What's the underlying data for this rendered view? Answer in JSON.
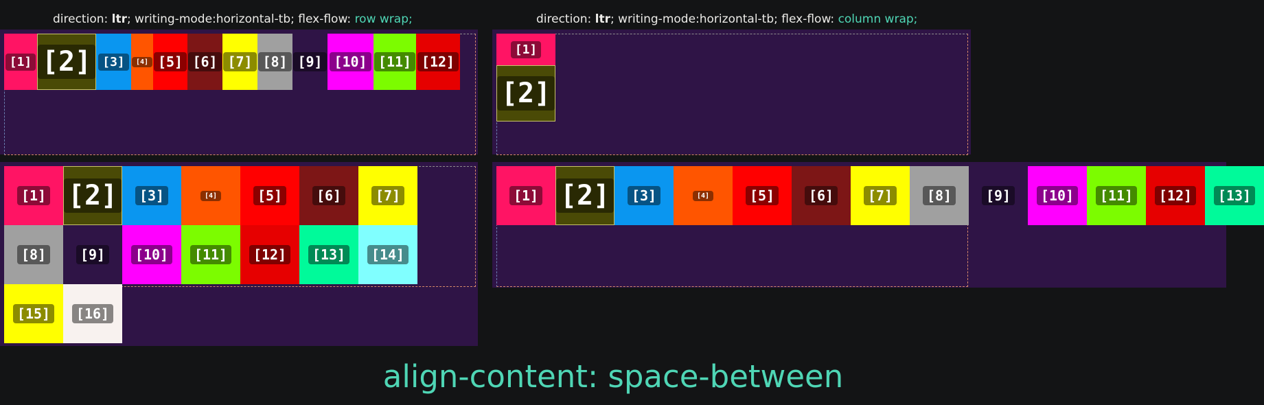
{
  "headings": {
    "left": {
      "prefix": "direction: ",
      "dir": "ltr",
      "mid": "; writing-mode:horizontal-tb; flex-flow: ",
      "flow": "row wrap;"
    },
    "right": {
      "prefix": "direction: ",
      "dir": "ltr",
      "mid": "; writing-mode:horizontal-tb; flex-flow: ",
      "flow": "column wrap;"
    }
  },
  "footer": "align-content: space-between",
  "colors": {
    "panel": "#2f1446",
    "accent": "#4fd6b5",
    "items": [
      "#ff1464",
      "#4a4a06",
      "#0a96f0",
      "#ff5500",
      "#ff0000",
      "#7d1616",
      "#ffff00",
      "#a0a0a0",
      "#2f1446",
      "#ff00ff",
      "#7cfc00",
      "#e60000",
      "#00fa9a",
      "#80ffff",
      "#ffff00",
      "#f8f2ef"
    ]
  },
  "panels": {
    "top_left": {
      "items": [
        "[1]",
        "[2]",
        "[3]",
        "[4]",
        "[5]",
        "[6]",
        "[7]",
        "[8]",
        "[9]",
        "[10]",
        "[11]",
        "[12]"
      ]
    },
    "top_right": {
      "items": [
        "[1]",
        "[2]"
      ]
    },
    "bottom_left": {
      "items": [
        "[1]",
        "[2]",
        "[3]",
        "[4]",
        "[5]",
        "[6]",
        "[7]",
        "[8]",
        "[9]",
        "[10]",
        "[11]",
        "[12]",
        "[13]",
        "[14]",
        "[15]",
        "[16]"
      ]
    },
    "bottom_right": {
      "items": [
        "[1]",
        "[2]",
        "[3]",
        "[4]",
        "[5]",
        "[6]",
        "[7]",
        "[8]",
        "[9]",
        "[10]",
        "[11]",
        "[12]",
        "[13]"
      ]
    }
  }
}
